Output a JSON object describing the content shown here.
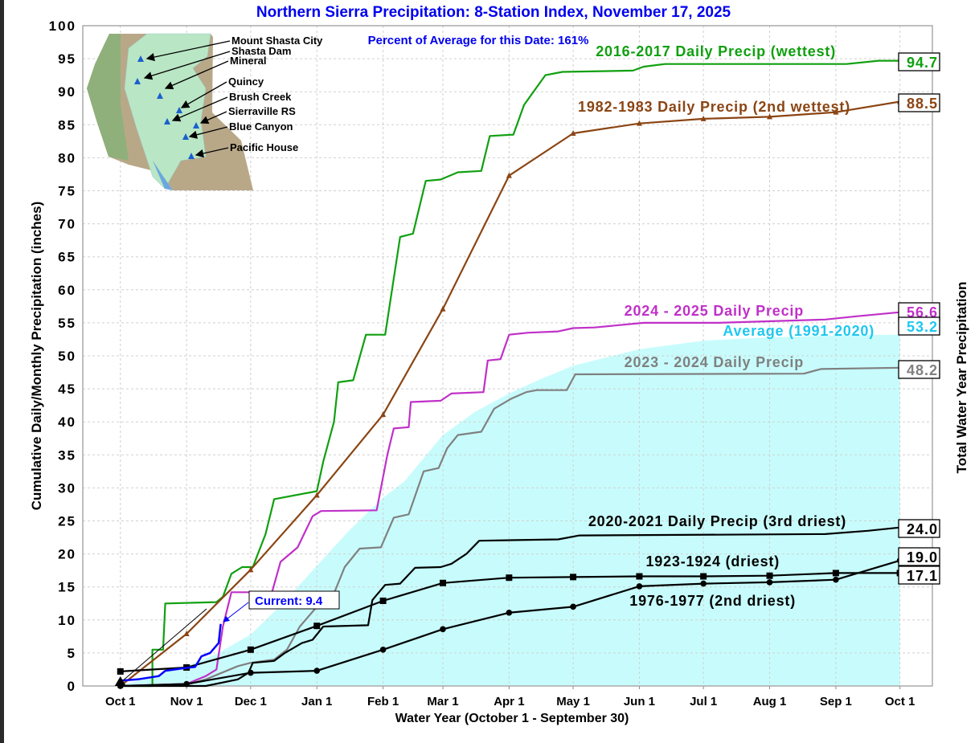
{
  "chart_data": {
    "type": "line",
    "title": "Northern Sierra Precipitation: 8-Station Index, November 17, 2025",
    "subtitle": "Percent of Average for this Date: 161%",
    "xlabel": "Water Year (October 1 - September 30)",
    "ylabel": "Cumulative Daily/Monthly Precipitation (inches)",
    "ylabel_right": "Total Water Year Precipitation",
    "xlim_days": [
      -17.6,
      380.2
    ],
    "ylim": [
      0,
      100
    ],
    "grid": true,
    "yticks": [
      "0",
      "5",
      "10",
      "15",
      "20",
      "25",
      "30",
      "35",
      "40",
      "45",
      "50",
      "55",
      "60",
      "65",
      "70",
      "75",
      "80",
      "85",
      "90",
      "95",
      "100"
    ],
    "xticks": [
      {
        "day": 0,
        "label": "Oct 1"
      },
      {
        "day": 31,
        "label": "Nov 1"
      },
      {
        "day": 61,
        "label": "Dec 1"
      },
      {
        "day": 92,
        "label": "Jan 1"
      },
      {
        "day": 123,
        "label": "Feb 1"
      },
      {
        "day": 151,
        "label": "Mar 1"
      },
      {
        "day": 182,
        "label": "Apr 1"
      },
      {
        "day": 212,
        "label": "May 1"
      },
      {
        "day": 243,
        "label": "Jun 1"
      },
      {
        "day": 273,
        "label": "Jul 1"
      },
      {
        "day": 304,
        "label": "Aug 1"
      },
      {
        "day": 335,
        "label": "Sep 1"
      },
      {
        "day": 365,
        "label": "Oct 1"
      }
    ],
    "average": {
      "name": "Average (1991-2020)",
      "total": "53.2",
      "color": "#c8fcfc",
      "label_color": "#1ec8f0",
      "points": [
        [
          0,
          0
        ],
        [
          15,
          1.5
        ],
        [
          31,
          3
        ],
        [
          46,
          5
        ],
        [
          61,
          7.8
        ],
        [
          76,
          12.5
        ],
        [
          92,
          18.2
        ],
        [
          107,
          23.5
        ],
        [
          123,
          28.5
        ],
        [
          133,
          31
        ],
        [
          151,
          38
        ],
        [
          166,
          41.5
        ],
        [
          182,
          44.3
        ],
        [
          197,
          46.5
        ],
        [
          212,
          48.5
        ],
        [
          243,
          51
        ],
        [
          273,
          52.3
        ],
        [
          304,
          52.8
        ],
        [
          335,
          53.1
        ],
        [
          365,
          53.2
        ]
      ]
    },
    "series": [
      {
        "name": "2016-2017 Daily Precip (wettest)",
        "total": "94.7",
        "color": "#10a010",
        "marker": "none",
        "points": [
          [
            0,
            0
          ],
          [
            15,
            0
          ],
          [
            15,
            5.5
          ],
          [
            20,
            5.5
          ],
          [
            21,
            12.5
          ],
          [
            45,
            12.7
          ],
          [
            48,
            13.5
          ],
          [
            52,
            17
          ],
          [
            57,
            18
          ],
          [
            62,
            18
          ],
          [
            68,
            23
          ],
          [
            72,
            28.3
          ],
          [
            92,
            29.5
          ],
          [
            95,
            34
          ],
          [
            100,
            40
          ],
          [
            102,
            46
          ],
          [
            109,
            46.3
          ],
          [
            115,
            53.2
          ],
          [
            124,
            53.2
          ],
          [
            131,
            68
          ],
          [
            137,
            68.5
          ],
          [
            143,
            76.5
          ],
          [
            150,
            76.7
          ],
          [
            158,
            77.8
          ],
          [
            169,
            78
          ],
          [
            173,
            83.3
          ],
          [
            184,
            83.5
          ],
          [
            189,
            88
          ],
          [
            199,
            92.5
          ],
          [
            207,
            93
          ],
          [
            240,
            93.2
          ],
          [
            245,
            93.8
          ],
          [
            255,
            94.2
          ],
          [
            340,
            94.2
          ],
          [
            355,
            94.7
          ],
          [
            365,
            94.7
          ]
        ]
      },
      {
        "name": "1982-1983 Daily Precip (2nd wettest)",
        "total": "88.5",
        "color": "#8b4513",
        "marker": "triangle",
        "points": [
          [
            0,
            0
          ],
          [
            31,
            7.9
          ],
          [
            61,
            17.6
          ],
          [
            92,
            28.9
          ],
          [
            123,
            41.1
          ],
          [
            151,
            57.1
          ],
          [
            182,
            77.3
          ],
          [
            212,
            83.7
          ],
          [
            243,
            85.2
          ],
          [
            273,
            85.9
          ],
          [
            304,
            86.2
          ],
          [
            335,
            86.9
          ],
          [
            365,
            88.5
          ]
        ]
      },
      {
        "name": "2024 - 2025 Daily Precip",
        "total": "56.6",
        "color": "#c030c8",
        "marker": "none",
        "points": [
          [
            0,
            0
          ],
          [
            31,
            0.3
          ],
          [
            40,
            1.5
          ],
          [
            45,
            2.5
          ],
          [
            48,
            9
          ],
          [
            52,
            14.2
          ],
          [
            71,
            14.2
          ],
          [
            75,
            18.8
          ],
          [
            83,
            21
          ],
          [
            90,
            25.7
          ],
          [
            94,
            26.5
          ],
          [
            120,
            26.6
          ],
          [
            125,
            35
          ],
          [
            128,
            39
          ],
          [
            135,
            39.2
          ],
          [
            136,
            43
          ],
          [
            150,
            43.2
          ],
          [
            155,
            44.3
          ],
          [
            170,
            44.5
          ],
          [
            172,
            49.3
          ],
          [
            178,
            49.5
          ],
          [
            182,
            53.2
          ],
          [
            191,
            53.5
          ],
          [
            205,
            53.7
          ],
          [
            212,
            54.2
          ],
          [
            222,
            54.3
          ],
          [
            245,
            55
          ],
          [
            280,
            55
          ],
          [
            330,
            55.5
          ],
          [
            345,
            56
          ],
          [
            365,
            56.6
          ]
        ]
      },
      {
        "name": "2023 - 2024 Daily Precip",
        "total": "48.2",
        "color": "#808080",
        "marker": "none",
        "points": [
          [
            0,
            0
          ],
          [
            31,
            0.2
          ],
          [
            40,
            1
          ],
          [
            55,
            3
          ],
          [
            61,
            3.5
          ],
          [
            72,
            4
          ],
          [
            78,
            5.5
          ],
          [
            84,
            9
          ],
          [
            92,
            12
          ],
          [
            100,
            14
          ],
          [
            105,
            18
          ],
          [
            112,
            20.8
          ],
          [
            122,
            21
          ],
          [
            128,
            25.5
          ],
          [
            135,
            26
          ],
          [
            142,
            32.5
          ],
          [
            149,
            33
          ],
          [
            153,
            36
          ],
          [
            158,
            38
          ],
          [
            169,
            38.5
          ],
          [
            175,
            42
          ],
          [
            183,
            43.5
          ],
          [
            190,
            44.5
          ],
          [
            195,
            44.8
          ],
          [
            209,
            44.8
          ],
          [
            213,
            47.2
          ],
          [
            320,
            47.3
          ],
          [
            328,
            48
          ],
          [
            365,
            48.2
          ]
        ]
      },
      {
        "name": "2020-2021 Daily Precip (3rd driest)",
        "total": "24.0",
        "color": "#000000",
        "marker": "none",
        "points": [
          [
            0,
            0
          ],
          [
            40,
            0
          ],
          [
            55,
            1
          ],
          [
            60,
            2
          ],
          [
            62,
            3.5
          ],
          [
            72,
            3.8
          ],
          [
            77,
            5
          ],
          [
            85,
            6.5
          ],
          [
            90,
            7
          ],
          [
            95,
            9
          ],
          [
            116,
            9.2
          ],
          [
            118,
            13
          ],
          [
            124,
            15.3
          ],
          [
            131,
            15.5
          ],
          [
            138,
            17.9
          ],
          [
            150,
            18
          ],
          [
            155,
            18.5
          ],
          [
            162,
            20
          ],
          [
            168,
            22
          ],
          [
            205,
            22.2
          ],
          [
            215,
            22.8
          ],
          [
            330,
            23
          ],
          [
            350,
            23.5
          ],
          [
            365,
            24
          ]
        ]
      },
      {
        "name": "1923-1924 (driest)",
        "total": "17.1",
        "color": "#000000",
        "marker": "square",
        "points": [
          [
            0,
            2.2
          ],
          [
            31,
            2.8
          ],
          [
            61,
            5.5
          ],
          [
            92,
            9.1
          ],
          [
            123,
            12.9
          ],
          [
            151,
            15.6
          ],
          [
            182,
            16.4
          ],
          [
            212,
            16.5
          ],
          [
            243,
            16.6
          ],
          [
            273,
            16.6
          ],
          [
            304,
            16.7
          ],
          [
            335,
            17.1
          ],
          [
            365,
            17.1
          ]
        ]
      },
      {
        "name": "1976-1977 (2nd driest)",
        "total": "19.0",
        "color": "#000000",
        "marker": "circle",
        "points": [
          [
            0,
            0
          ],
          [
            31,
            0.3
          ],
          [
            61,
            2.0
          ],
          [
            92,
            2.3
          ],
          [
            123,
            5.5
          ],
          [
            151,
            8.6
          ],
          [
            182,
            11.1
          ],
          [
            212,
            12.0
          ],
          [
            243,
            15.1
          ],
          [
            273,
            15.5
          ],
          [
            304,
            15.7
          ],
          [
            335,
            16.1
          ],
          [
            365,
            19.0
          ]
        ]
      },
      {
        "name": "Current",
        "total": "9.4",
        "color": "#0000ff",
        "marker": "none",
        "points": [
          [
            0,
            0.8
          ],
          [
            8,
            1
          ],
          [
            18,
            1.5
          ],
          [
            21,
            2.3
          ],
          [
            30,
            2.7
          ],
          [
            35,
            2.9
          ],
          [
            38,
            4.5
          ],
          [
            42,
            5
          ],
          [
            46,
            6.5
          ],
          [
            47,
            9.4
          ]
        ]
      }
    ],
    "current_label": "Current: 9.4"
  },
  "map": {
    "stations": [
      "Mount Shasta City",
      "Shasta Dam",
      "Mineral",
      "Quincy",
      "Brush Creek",
      "Sierraville RS",
      "Blue Canyon",
      "Pacific House"
    ]
  }
}
